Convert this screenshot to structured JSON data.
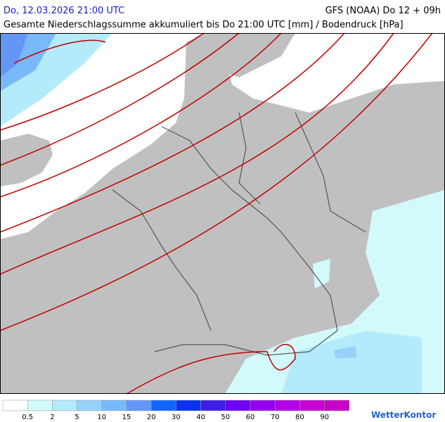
{
  "header": {
    "datetime": "Do, 12.03.2026 21:00 UTC",
    "model": "GFS (NOAA) Do 12 + 09h",
    "subtitle": "Gesamte Niederschlagssumme akkumuliert bis Do 21:00 UTC [mm] / Bodendruck [hPa]"
  },
  "legend": {
    "labels": [
      0.5,
      2,
      5,
      10,
      15,
      20,
      30,
      40,
      50,
      60,
      70,
      80,
      90
    ],
    "colors": [
      "#ffffff",
      "#d2fafa",
      "#b4ebfa",
      "#96d2fa",
      "#78b9fa",
      "#6496f5",
      "#1464ff",
      "#0a32f0",
      "#3c1ee6",
      "#6e00f5",
      "#9600f0",
      "#b400e6",
      "#c800d2",
      "#c800c8"
    ]
  },
  "brand": "WetterKontor"
}
